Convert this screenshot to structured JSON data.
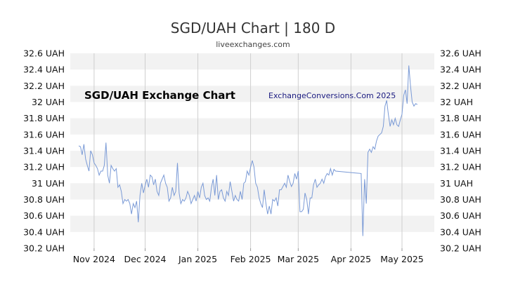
{
  "header": {
    "title": "SGD/UAH Chart | 180 D",
    "subtitle": "liveexchanges.com"
  },
  "watermark": {
    "left": "SGD/UAH Exchange Chart",
    "right": "ExchangeConversions.Com 2025"
  },
  "colors": {
    "line": "#7a9ad6",
    "band": "#f2f2f2",
    "grid": "#cfcfcf"
  },
  "chart_data": {
    "type": "line",
    "grid": true,
    "ylim": [
      30.2,
      32.6
    ],
    "y_ticks": [
      32.6,
      32.4,
      32.2,
      32.0,
      31.8,
      31.6,
      31.4,
      31.2,
      31.0,
      30.8,
      30.6,
      30.4,
      30.2
    ],
    "y_tick_labels": [
      "32.6 UAH",
      "32.4 UAH",
      "32.2 UAH",
      "32 UAH",
      "31.8 UAH",
      "31.6 UAH",
      "31.4 UAH",
      "31.2 UAH",
      "31 UAH",
      "30.8 UAH",
      "30.6 UAH",
      "30.4 UAH",
      "30.2 UAH"
    ],
    "xlim": [
      "2024-10-18",
      "2025-05-20"
    ],
    "x_ticks": [
      "2024-11-01",
      "2024-12-01",
      "2025-01-01",
      "2025-02-01",
      "2025-03-01",
      "2025-04-01",
      "2025-05-01"
    ],
    "x_tick_labels": [
      "Nov 2024",
      "Dec 2024",
      "Jan 2025",
      "Feb 2025",
      "Mar 2025",
      "Apr 2025",
      "May 2025"
    ],
    "x": [
      "2024-10-23",
      "2024-10-24",
      "2024-10-25",
      "2024-10-26",
      "2024-10-27",
      "2024-10-28",
      "2024-10-29",
      "2024-10-30",
      "2024-10-31",
      "2024-11-01",
      "2024-11-02",
      "2024-11-03",
      "2024-11-04",
      "2024-11-05",
      "2024-11-06",
      "2024-11-07",
      "2024-11-08",
      "2024-11-09",
      "2024-11-10",
      "2024-11-11",
      "2024-11-12",
      "2024-11-13",
      "2024-11-14",
      "2024-11-15",
      "2024-11-16",
      "2024-11-17",
      "2024-11-18",
      "2024-11-19",
      "2024-11-20",
      "2024-11-21",
      "2024-11-22",
      "2024-11-23",
      "2024-11-24",
      "2024-11-25",
      "2024-11-26",
      "2024-11-27",
      "2024-11-28",
      "2024-11-29",
      "2024-11-30",
      "2024-12-01",
      "2024-12-02",
      "2024-12-03",
      "2024-12-04",
      "2024-12-05",
      "2024-12-06",
      "2024-12-07",
      "2024-12-08",
      "2024-12-09",
      "2024-12-10",
      "2024-12-11",
      "2024-12-12",
      "2024-12-13",
      "2024-12-14",
      "2024-12-15",
      "2024-12-16",
      "2024-12-17",
      "2024-12-18",
      "2024-12-19",
      "2024-12-20",
      "2024-12-21",
      "2024-12-22",
      "2024-12-23",
      "2024-12-24",
      "2024-12-25",
      "2024-12-26",
      "2024-12-27",
      "2024-12-28",
      "2024-12-29",
      "2024-12-30",
      "2024-12-31",
      "2025-01-01",
      "2025-01-02",
      "2025-01-03",
      "2025-01-04",
      "2025-01-05",
      "2025-01-06",
      "2025-01-07",
      "2025-01-08",
      "2025-01-09",
      "2025-01-10",
      "2025-01-11",
      "2025-01-12",
      "2025-01-13",
      "2025-01-14",
      "2025-01-15",
      "2025-01-16",
      "2025-01-17",
      "2025-01-18",
      "2025-01-19",
      "2025-01-20",
      "2025-01-21",
      "2025-01-22",
      "2025-01-23",
      "2025-01-24",
      "2025-01-25",
      "2025-01-26",
      "2025-01-27",
      "2025-01-28",
      "2025-01-29",
      "2025-01-30",
      "2025-01-31",
      "2025-02-01",
      "2025-02-02",
      "2025-02-03",
      "2025-02-04",
      "2025-02-05",
      "2025-02-06",
      "2025-02-07",
      "2025-02-08",
      "2025-02-09",
      "2025-02-10",
      "2025-02-11",
      "2025-02-12",
      "2025-02-13",
      "2025-02-14",
      "2025-02-15",
      "2025-02-16",
      "2025-02-17",
      "2025-02-18",
      "2025-02-19",
      "2025-02-20",
      "2025-02-21",
      "2025-02-22",
      "2025-02-23",
      "2025-02-24",
      "2025-02-25",
      "2025-02-26",
      "2025-02-27",
      "2025-02-28",
      "2025-03-01",
      "2025-03-02",
      "2025-03-03",
      "2025-03-04",
      "2025-03-05",
      "2025-03-06",
      "2025-03-07",
      "2025-03-08",
      "2025-03-09",
      "2025-03-10",
      "2025-03-11",
      "2025-03-12",
      "2025-03-13",
      "2025-03-14",
      "2025-03-15",
      "2025-03-16",
      "2025-03-17",
      "2025-03-18",
      "2025-03-19",
      "2025-03-20",
      "2025-03-21",
      "2025-03-22",
      "2025-03-23",
      "2025-04-07",
      "2025-04-08",
      "2025-04-09",
      "2025-04-10",
      "2025-04-11",
      "2025-04-12",
      "2025-04-13",
      "2025-04-14",
      "2025-04-15",
      "2025-04-16",
      "2025-04-17",
      "2025-04-18",
      "2025-04-19",
      "2025-04-20",
      "2025-04-21",
      "2025-04-22",
      "2025-04-23",
      "2025-04-24",
      "2025-04-25",
      "2025-04-26",
      "2025-04-27",
      "2025-04-28",
      "2025-04-29",
      "2025-04-30",
      "2025-05-01",
      "2025-05-02",
      "2025-05-03",
      "2025-05-04",
      "2025-05-05",
      "2025-05-06",
      "2025-05-07",
      "2025-05-08",
      "2025-05-09",
      "2025-05-10"
    ],
    "series": [
      {
        "values": [
          31.46,
          31.45,
          31.35,
          31.48,
          31.3,
          31.22,
          31.15,
          31.4,
          31.35,
          31.25,
          31.22,
          31.18,
          31.1,
          31.15,
          31.15,
          31.22,
          31.5,
          31.1,
          31.0,
          31.22,
          31.18,
          31.15,
          31.18,
          30.95,
          30.98,
          30.9,
          30.75,
          30.8,
          30.78,
          30.8,
          30.75,
          30.62,
          30.75,
          30.7,
          30.78,
          30.52,
          30.85,
          31.0,
          30.88,
          30.97,
          31.05,
          30.95,
          31.1,
          31.08,
          30.98,
          31.05,
          30.9,
          30.85,
          31.0,
          31.05,
          31.1,
          31.0,
          30.95,
          30.78,
          30.82,
          30.95,
          30.85,
          30.9,
          31.25,
          30.88,
          30.75,
          30.8,
          30.78,
          30.82,
          30.9,
          30.85,
          30.75,
          30.8,
          30.85,
          30.78,
          30.9,
          30.82,
          30.95,
          31.0,
          30.85,
          30.8,
          30.82,
          30.78,
          30.95,
          31.05,
          30.85,
          31.1,
          30.8,
          30.9,
          30.92,
          30.82,
          30.78,
          30.9,
          30.85,
          31.02,
          30.9,
          30.78,
          30.85,
          30.8,
          30.78,
          30.9,
          30.8,
          31.0,
          31.02,
          31.15,
          31.1,
          31.2,
          31.28,
          31.2,
          31.0,
          30.95,
          30.82,
          30.75,
          30.7,
          30.92,
          30.75,
          30.62,
          30.72,
          30.62,
          30.8,
          30.78,
          30.82,
          30.72,
          30.92,
          30.92,
          30.96,
          31.0,
          30.95,
          31.1,
          31.02,
          30.96,
          31.0,
          31.12,
          31.05,
          31.15,
          30.65,
          30.65,
          30.68,
          30.88,
          30.8,
          30.62,
          30.82,
          30.82,
          30.98,
          31.05,
          30.95,
          30.98,
          31.0,
          31.05,
          31.0,
          31.08,
          31.12,
          31.1,
          31.18,
          31.1,
          31.17,
          31.15,
          31.12,
          30.35,
          31.05,
          30.75,
          31.38,
          31.42,
          31.38,
          31.45,
          31.42,
          31.52,
          31.58,
          31.6,
          31.62,
          31.7,
          31.95,
          32.02,
          31.85,
          31.7,
          31.78,
          31.72,
          31.8,
          31.72,
          31.7,
          31.78,
          31.85,
          32.08,
          32.15,
          31.98,
          32.45,
          32.2,
          32.0,
          31.95,
          31.98,
          31.97
        ]
      }
    ]
  }
}
